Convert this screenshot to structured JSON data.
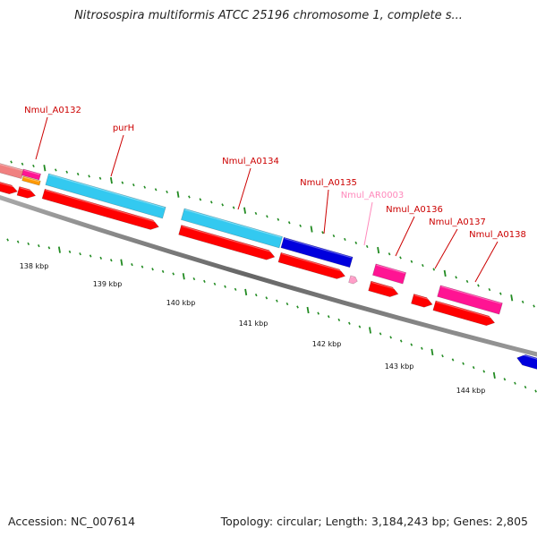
{
  "title": "Nitrosospira multiformis ATCC 25196 chromosome 1, complete s...",
  "footer": {
    "accession": "Accession: NC_007614",
    "topology": "Topology: circular; Length: 3,184,243 bp; Genes: 2,805"
  },
  "colors": {
    "backbone": "#888888",
    "tick": "#228b22",
    "gene_cds": "#ff0000",
    "gene_cyan": "#33c9f0",
    "gene_blue": "#0000dd",
    "gene_magenta": "#ff1493",
    "gene_pink": "#ff9ec8",
    "gene_salmon": "#f08080",
    "gene_orange": "#ff9900",
    "label_red": "#cc0000",
    "label_pink": "#ff88bb"
  },
  "scale": {
    "ticks": [
      "138 kbp",
      "139 kbp",
      "140 kbp",
      "141 kbp",
      "142 kbp",
      "143 kbp",
      "144 kbp"
    ]
  },
  "gene_labels": [
    {
      "text": "Nmul_A0132",
      "color": "#cc0000"
    },
    {
      "text": "purH",
      "color": "#cc0000"
    },
    {
      "text": "Nmul_A0134",
      "color": "#cc0000"
    },
    {
      "text": "Nmul_A0135",
      "color": "#cc0000"
    },
    {
      "text": "Nmul_AR0003",
      "color": "#ff88bb"
    },
    {
      "text": "Nmul_A0136",
      "color": "#cc0000"
    },
    {
      "text": "Nmul_A0137",
      "color": "#cc0000"
    },
    {
      "text": "Nmul_A0138",
      "color": "#cc0000"
    }
  ]
}
